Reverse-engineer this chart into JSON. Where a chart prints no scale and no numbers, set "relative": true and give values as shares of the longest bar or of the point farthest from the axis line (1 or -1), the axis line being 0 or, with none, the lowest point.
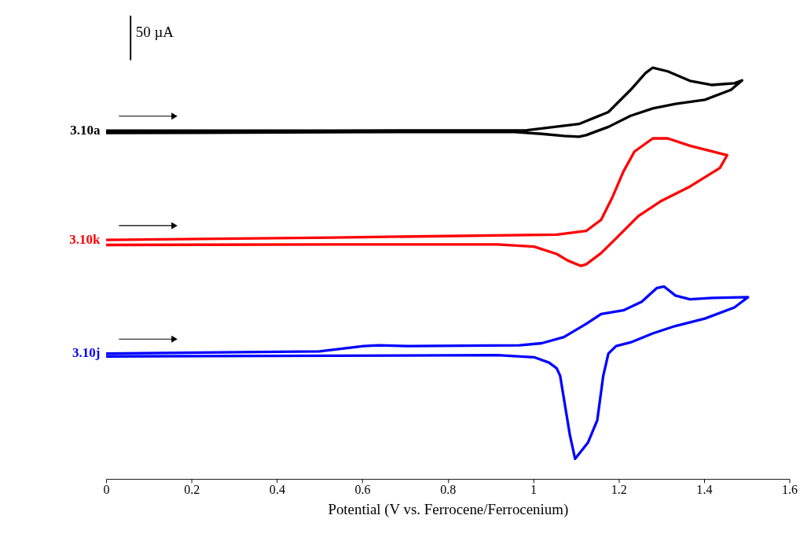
{
  "chart_data": {
    "type": "line",
    "relative": true,
    "xlabel": "Potential (V vs. Ferrocene/Ferrocenium)",
    "xlim": [
      0,
      1.6
    ],
    "xticks": [
      0,
      0.2,
      0.4,
      0.6,
      0.8,
      1,
      1.2,
      1.4,
      1.6
    ],
    "grid": false,
    "marker": "none",
    "line_style": "solid",
    "annotations": [
      "50 µA"
    ],
    "series": [
      {
        "name": "3.10a",
        "color": "#000000",
        "x": [
          0,
          0.533,
          0.985,
          1.107,
          1.176,
          1.228,
          1.263,
          1.28,
          1.315,
          1.367,
          1.419,
          1.471,
          1.489,
          1.463,
          1.402,
          1.333,
          1.28,
          1.228,
          1.176,
          1.124,
          1.107,
          1.072,
          1.02,
          0.95,
          0.533,
          0
        ],
        "values": [
          0.847,
          0.847,
          0.848,
          0.863,
          0.892,
          0.946,
          0.987,
          1,
          0.991,
          0.968,
          0.958,
          0.962,
          0.969,
          0.946,
          0.922,
          0.912,
          0.901,
          0.883,
          0.856,
          0.836,
          0.832,
          0.834,
          0.839,
          0.844,
          0.843,
          0.841
        ]
      },
      {
        "name": "3.10k",
        "color": "#ff0000",
        "x": [
          0,
          0.533,
          1.055,
          1.124,
          1.159,
          1.185,
          1.211,
          1.237,
          1.28,
          1.315,
          1.367,
          1.454,
          1.437,
          1.367,
          1.298,
          1.246,
          1.194,
          1.159,
          1.124,
          1.112,
          1.081,
          1.055,
          1.002,
          0.916,
          0.533,
          0
        ],
        "values": [
          0.581,
          0.587,
          0.594,
          0.603,
          0.63,
          0.684,
          0.747,
          0.796,
          0.828,
          0.828,
          0.81,
          0.787,
          0.756,
          0.711,
          0.675,
          0.639,
          0.585,
          0.549,
          0.522,
          0.518,
          0.531,
          0.547,
          0.565,
          0.57,
          0.57,
          0.569
        ]
      },
      {
        "name": "3.10j",
        "color": "#0000ff",
        "x": [
          0,
          0.499,
          0.603,
          0.638,
          0.707,
          0.968,
          1.02,
          1.072,
          1.124,
          1.159,
          1.211,
          1.254,
          1.289,
          1.306,
          1.333,
          1.367,
          1.419,
          1.503,
          1.471,
          1.402,
          1.333,
          1.28,
          1.228,
          1.194,
          1.176,
          1.164,
          1.15,
          1.128,
          1.098,
          1.086,
          1.063,
          1.055,
          1.037,
          1.002,
          0.916,
          0
        ],
        "values": [
          0.305,
          0.31,
          0.323,
          0.325,
          0.323,
          0.325,
          0.33,
          0.345,
          0.377,
          0.401,
          0.41,
          0.431,
          0.464,
          0.468,
          0.446,
          0.437,
          0.44,
          0.442,
          0.417,
          0.39,
          0.372,
          0.354,
          0.332,
          0.323,
          0.305,
          0.251,
          0.143,
          0.088,
          0.049,
          0.106,
          0.251,
          0.269,
          0.283,
          0.296,
          0.301,
          0.298
        ]
      }
    ]
  }
}
